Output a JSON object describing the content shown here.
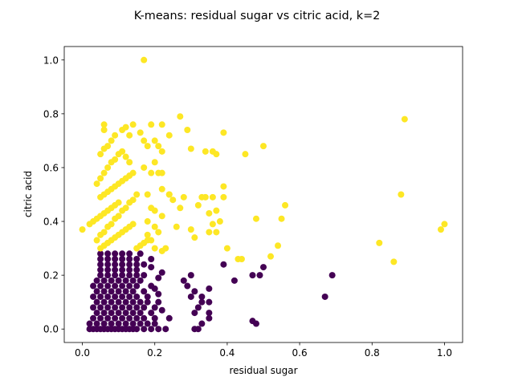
{
  "chart_data": {
    "type": "scatter",
    "title": "K-means: residual sugar vs citric acid, k=2",
    "xlabel": "residual sugar",
    "ylabel": "citric acid",
    "xlim": [
      -0.05,
      1.05
    ],
    "ylim": [
      -0.05,
      1.05
    ],
    "xticks": [
      "0.0",
      "0.2",
      "0.4",
      "0.6",
      "0.8",
      "1.0"
    ],
    "yticks": [
      "0.0",
      "0.2",
      "0.4",
      "0.6",
      "0.8",
      "1.0"
    ],
    "grid": false,
    "colors": {
      "cluster_0": "#440154",
      "cluster_1": "#fde725"
    },
    "series": [
      {
        "cluster": 0,
        "color": "#440154",
        "points": [
          [
            0.02,
            0.0
          ],
          [
            0.03,
            0.0
          ],
          [
            0.04,
            0.0
          ],
          [
            0.05,
            0.0
          ],
          [
            0.06,
            0.0
          ],
          [
            0.07,
            0.0
          ],
          [
            0.08,
            0.0
          ],
          [
            0.09,
            0.0
          ],
          [
            0.1,
            0.0
          ],
          [
            0.11,
            0.0
          ],
          [
            0.12,
            0.0
          ],
          [
            0.13,
            0.0
          ],
          [
            0.14,
            0.0
          ],
          [
            0.15,
            0.0
          ],
          [
            0.17,
            0.0
          ],
          [
            0.19,
            0.0
          ],
          [
            0.21,
            0.0
          ],
          [
            0.23,
            0.0
          ],
          [
            0.31,
            0.0
          ],
          [
            0.32,
            0.0
          ],
          [
            0.02,
            0.02
          ],
          [
            0.04,
            0.02
          ],
          [
            0.06,
            0.02
          ],
          [
            0.08,
            0.02
          ],
          [
            0.1,
            0.02
          ],
          [
            0.12,
            0.02
          ],
          [
            0.14,
            0.02
          ],
          [
            0.16,
            0.02
          ],
          [
            0.18,
            0.02
          ],
          [
            0.2,
            0.02
          ],
          [
            0.33,
            0.02
          ],
          [
            0.47,
            0.03
          ],
          [
            0.48,
            0.02
          ],
          [
            0.03,
            0.04
          ],
          [
            0.05,
            0.04
          ],
          [
            0.07,
            0.04
          ],
          [
            0.09,
            0.04
          ],
          [
            0.11,
            0.04
          ],
          [
            0.13,
            0.04
          ],
          [
            0.15,
            0.04
          ],
          [
            0.17,
            0.04
          ],
          [
            0.2,
            0.04
          ],
          [
            0.24,
            0.04
          ],
          [
            0.35,
            0.04
          ],
          [
            0.04,
            0.06
          ],
          [
            0.06,
            0.06
          ],
          [
            0.08,
            0.06
          ],
          [
            0.1,
            0.06
          ],
          [
            0.12,
            0.06
          ],
          [
            0.14,
            0.06
          ],
          [
            0.16,
            0.06
          ],
          [
            0.19,
            0.06
          ],
          [
            0.22,
            0.07
          ],
          [
            0.31,
            0.06
          ],
          [
            0.35,
            0.06
          ],
          [
            0.03,
            0.08
          ],
          [
            0.05,
            0.08
          ],
          [
            0.07,
            0.08
          ],
          [
            0.09,
            0.08
          ],
          [
            0.11,
            0.08
          ],
          [
            0.13,
            0.08
          ],
          [
            0.15,
            0.08
          ],
          [
            0.17,
            0.08
          ],
          [
            0.2,
            0.08
          ],
          [
            0.32,
            0.08
          ],
          [
            0.04,
            0.1
          ],
          [
            0.06,
            0.1
          ],
          [
            0.08,
            0.1
          ],
          [
            0.1,
            0.1
          ],
          [
            0.12,
            0.1
          ],
          [
            0.14,
            0.1
          ],
          [
            0.16,
            0.1
          ],
          [
            0.18,
            0.1
          ],
          [
            0.21,
            0.1
          ],
          [
            0.33,
            0.1
          ],
          [
            0.35,
            0.1
          ],
          [
            0.03,
            0.12
          ],
          [
            0.05,
            0.12
          ],
          [
            0.07,
            0.12
          ],
          [
            0.09,
            0.12
          ],
          [
            0.11,
            0.12
          ],
          [
            0.13,
            0.12
          ],
          [
            0.15,
            0.12
          ],
          [
            0.18,
            0.12
          ],
          [
            0.21,
            0.13
          ],
          [
            0.3,
            0.12
          ],
          [
            0.33,
            0.12
          ],
          [
            0.67,
            0.12
          ],
          [
            0.04,
            0.14
          ],
          [
            0.06,
            0.14
          ],
          [
            0.08,
            0.14
          ],
          [
            0.1,
            0.14
          ],
          [
            0.12,
            0.14
          ],
          [
            0.14,
            0.14
          ],
          [
            0.17,
            0.14
          ],
          [
            0.2,
            0.15
          ],
          [
            0.31,
            0.14
          ],
          [
            0.03,
            0.16
          ],
          [
            0.05,
            0.16
          ],
          [
            0.07,
            0.16
          ],
          [
            0.09,
            0.16
          ],
          [
            0.11,
            0.16
          ],
          [
            0.13,
            0.16
          ],
          [
            0.15,
            0.16
          ],
          [
            0.19,
            0.16
          ],
          [
            0.29,
            0.16
          ],
          [
            0.35,
            0.15
          ],
          [
            0.04,
            0.18
          ],
          [
            0.06,
            0.18
          ],
          [
            0.08,
            0.18
          ],
          [
            0.1,
            0.18
          ],
          [
            0.12,
            0.18
          ],
          [
            0.14,
            0.18
          ],
          [
            0.16,
            0.18
          ],
          [
            0.21,
            0.19
          ],
          [
            0.28,
            0.18
          ],
          [
            0.42,
            0.18
          ],
          [
            0.05,
            0.2
          ],
          [
            0.07,
            0.2
          ],
          [
            0.09,
            0.2
          ],
          [
            0.11,
            0.2
          ],
          [
            0.13,
            0.2
          ],
          [
            0.15,
            0.2
          ],
          [
            0.17,
            0.2
          ],
          [
            0.22,
            0.21
          ],
          [
            0.3,
            0.2
          ],
          [
            0.47,
            0.2
          ],
          [
            0.49,
            0.2
          ],
          [
            0.69,
            0.2
          ],
          [
            0.05,
            0.22
          ],
          [
            0.07,
            0.22
          ],
          [
            0.09,
            0.22
          ],
          [
            0.11,
            0.22
          ],
          [
            0.13,
            0.22
          ],
          [
            0.15,
            0.22
          ],
          [
            0.19,
            0.23
          ],
          [
            0.5,
            0.23
          ],
          [
            0.05,
            0.24
          ],
          [
            0.07,
            0.24
          ],
          [
            0.09,
            0.24
          ],
          [
            0.11,
            0.24
          ],
          [
            0.13,
            0.24
          ],
          [
            0.15,
            0.24
          ],
          [
            0.17,
            0.24
          ],
          [
            0.39,
            0.24
          ],
          [
            0.05,
            0.26
          ],
          [
            0.07,
            0.26
          ],
          [
            0.09,
            0.26
          ],
          [
            0.11,
            0.26
          ],
          [
            0.13,
            0.26
          ],
          [
            0.15,
            0.26
          ],
          [
            0.19,
            0.26
          ],
          [
            0.05,
            0.28
          ],
          [
            0.07,
            0.28
          ],
          [
            0.09,
            0.28
          ],
          [
            0.11,
            0.28
          ],
          [
            0.13,
            0.28
          ],
          [
            0.16,
            0.28
          ]
        ]
      },
      {
        "cluster": 1,
        "color": "#fde725",
        "points": [
          [
            0.0,
            0.37
          ],
          [
            0.02,
            0.39
          ],
          [
            0.03,
            0.4
          ],
          [
            0.04,
            0.41
          ],
          [
            0.05,
            0.42
          ],
          [
            0.06,
            0.43
          ],
          [
            0.07,
            0.44
          ],
          [
            0.08,
            0.45
          ],
          [
            0.09,
            0.46
          ],
          [
            0.1,
            0.47
          ],
          [
            0.05,
            0.3
          ],
          [
            0.06,
            0.31
          ],
          [
            0.07,
            0.32
          ],
          [
            0.08,
            0.33
          ],
          [
            0.09,
            0.34
          ],
          [
            0.1,
            0.35
          ],
          [
            0.11,
            0.36
          ],
          [
            0.12,
            0.37
          ],
          [
            0.13,
            0.38
          ],
          [
            0.14,
            0.39
          ],
          [
            0.15,
            0.3
          ],
          [
            0.16,
            0.31
          ],
          [
            0.17,
            0.32
          ],
          [
            0.18,
            0.33
          ],
          [
            0.04,
            0.33
          ],
          [
            0.05,
            0.35
          ],
          [
            0.06,
            0.36
          ],
          [
            0.07,
            0.38
          ],
          [
            0.08,
            0.39
          ],
          [
            0.09,
            0.41
          ],
          [
            0.1,
            0.42
          ],
          [
            0.11,
            0.44
          ],
          [
            0.12,
            0.45
          ],
          [
            0.13,
            0.47
          ],
          [
            0.14,
            0.48
          ],
          [
            0.15,
            0.5
          ],
          [
            0.05,
            0.49
          ],
          [
            0.06,
            0.5
          ],
          [
            0.07,
            0.51
          ],
          [
            0.08,
            0.52
          ],
          [
            0.09,
            0.53
          ],
          [
            0.1,
            0.54
          ],
          [
            0.11,
            0.55
          ],
          [
            0.12,
            0.56
          ],
          [
            0.13,
            0.57
          ],
          [
            0.14,
            0.58
          ],
          [
            0.04,
            0.54
          ],
          [
            0.05,
            0.56
          ],
          [
            0.06,
            0.58
          ],
          [
            0.07,
            0.6
          ],
          [
            0.08,
            0.62
          ],
          [
            0.09,
            0.63
          ],
          [
            0.1,
            0.65
          ],
          [
            0.11,
            0.66
          ],
          [
            0.12,
            0.64
          ],
          [
            0.13,
            0.62
          ],
          [
            0.05,
            0.65
          ],
          [
            0.06,
            0.67
          ],
          [
            0.07,
            0.68
          ],
          [
            0.08,
            0.7
          ],
          [
            0.09,
            0.72
          ],
          [
            0.06,
            0.74
          ],
          [
            0.06,
            0.76
          ],
          [
            0.11,
            0.74
          ],
          [
            0.12,
            0.75
          ],
          [
            0.13,
            0.72
          ],
          [
            0.14,
            0.76
          ],
          [
            0.16,
            0.73
          ],
          [
            0.17,
            0.7
          ],
          [
            0.18,
            0.68
          ],
          [
            0.17,
            1.0
          ],
          [
            0.19,
            0.76
          ],
          [
            0.22,
            0.76
          ],
          [
            0.2,
            0.7
          ],
          [
            0.21,
            0.68
          ],
          [
            0.22,
            0.66
          ],
          [
            0.24,
            0.72
          ],
          [
            0.27,
            0.79
          ],
          [
            0.29,
            0.74
          ],
          [
            0.3,
            0.67
          ],
          [
            0.34,
            0.66
          ],
          [
            0.36,
            0.66
          ],
          [
            0.37,
            0.65
          ],
          [
            0.39,
            0.73
          ],
          [
            0.45,
            0.65
          ],
          [
            0.5,
            0.68
          ],
          [
            0.17,
            0.6
          ],
          [
            0.19,
            0.58
          ],
          [
            0.21,
            0.58
          ],
          [
            0.22,
            0.52
          ],
          [
            0.24,
            0.5
          ],
          [
            0.25,
            0.48
          ],
          [
            0.28,
            0.49
          ],
          [
            0.2,
            0.62
          ],
          [
            0.22,
            0.58
          ],
          [
            0.24,
            0.5
          ],
          [
            0.18,
            0.5
          ],
          [
            0.19,
            0.45
          ],
          [
            0.2,
            0.44
          ],
          [
            0.22,
            0.42
          ],
          [
            0.18,
            0.4
          ],
          [
            0.2,
            0.38
          ],
          [
            0.21,
            0.36
          ],
          [
            0.18,
            0.35
          ],
          [
            0.19,
            0.33
          ],
          [
            0.2,
            0.3
          ],
          [
            0.22,
            0.29
          ],
          [
            0.23,
            0.3
          ],
          [
            0.26,
            0.38
          ],
          [
            0.27,
            0.45
          ],
          [
            0.3,
            0.37
          ],
          [
            0.31,
            0.34
          ],
          [
            0.32,
            0.46
          ],
          [
            0.33,
            0.49
          ],
          [
            0.34,
            0.49
          ],
          [
            0.35,
            0.43
          ],
          [
            0.36,
            0.49
          ],
          [
            0.35,
            0.36
          ],
          [
            0.36,
            0.39
          ],
          [
            0.37,
            0.44
          ],
          [
            0.37,
            0.36
          ],
          [
            0.38,
            0.4
          ],
          [
            0.39,
            0.49
          ],
          [
            0.39,
            0.53
          ],
          [
            0.4,
            0.3
          ],
          [
            0.43,
            0.26
          ],
          [
            0.44,
            0.26
          ],
          [
            0.48,
            0.41
          ],
          [
            0.52,
            0.27
          ],
          [
            0.54,
            0.31
          ],
          [
            0.55,
            0.41
          ],
          [
            0.56,
            0.46
          ],
          [
            0.82,
            0.32
          ],
          [
            0.86,
            0.25
          ],
          [
            0.88,
            0.5
          ],
          [
            0.89,
            0.78
          ],
          [
            0.99,
            0.37
          ],
          [
            1.0,
            0.39
          ]
        ]
      }
    ]
  }
}
